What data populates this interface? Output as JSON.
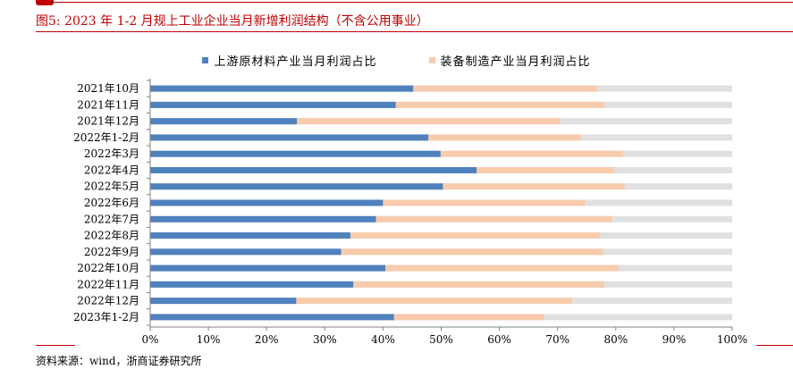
{
  "figure": {
    "title": "图5:  2023 年 1-2 月规上工业企业当月新增利润结构（不含公用事业）",
    "source": "资料来源：wind，浙商证券研究所"
  },
  "colors": {
    "accent": "#c00000",
    "series_upstream": "#4f81bd",
    "series_equipment": "#f8cbad",
    "remainder": "#e0e0e0"
  },
  "chart_data": {
    "type": "bar",
    "orientation": "horizontal",
    "stacked": true,
    "title": "",
    "xlabel": "",
    "ylabel": "",
    "xlim": [
      0,
      100
    ],
    "x_ticks": [
      "0%",
      "10%",
      "20%",
      "30%",
      "40%",
      "50%",
      "60%",
      "70%",
      "80%",
      "90%",
      "100%"
    ],
    "grid": false,
    "legend_position": "top",
    "categories": [
      "2021年10月",
      "2021年11月",
      "2021年12月",
      "2022年1-2月",
      "2022年3月",
      "2022年4月",
      "2022年5月",
      "2022年6月",
      "2022年7月",
      "2022年8月",
      "2022年9月",
      "2022年10月",
      "2022年11月",
      "2022年12月",
      "2023年1-2月"
    ],
    "series": [
      {
        "name": "上游原材料产业当月利润占比",
        "values": [
          45.2,
          42.2,
          25.2,
          47.8,
          49.9,
          56.1,
          50.3,
          40.0,
          38.8,
          34.4,
          32.8,
          40.4,
          34.9,
          25.1,
          41.9
        ]
      },
      {
        "name": "装备制造产业当月利润占比",
        "values": [
          31.6,
          35.9,
          45.1,
          26.2,
          31.3,
          23.6,
          31.2,
          34.8,
          40.6,
          42.9,
          45.0,
          40.1,
          43.1,
          47.4,
          25.8
        ]
      }
    ]
  }
}
